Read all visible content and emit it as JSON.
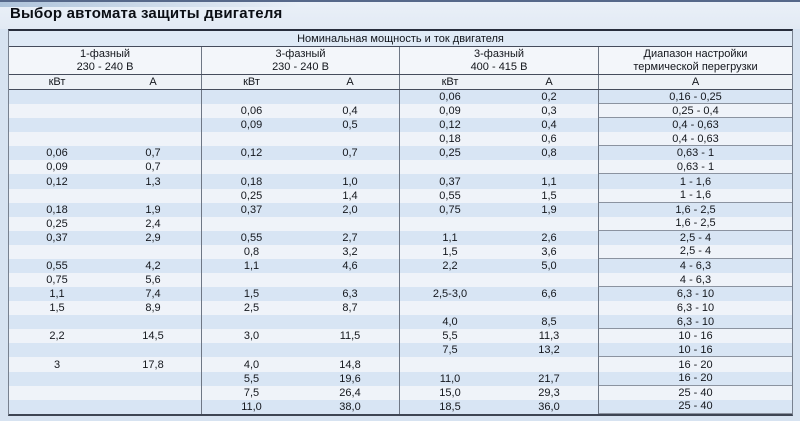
{
  "title": "Выбор автомата защиты двигателя",
  "colors": {
    "band1_bg": "#dfeaf6",
    "band2_bg": "#f3f6fa",
    "band3_bg": "#eef2f7",
    "row_blue": "#d8e5f4",
    "row_white": "#eff3f9",
    "border_dark": "#272d3c",
    "divider_gray": "#6e7785",
    "range_group_border": "#8b93a0"
  },
  "table": {
    "main_header": "Номинальная мощность и ток двигателя",
    "groups": [
      {
        "line1": "1-фазный",
        "line2": "230 - 240 В"
      },
      {
        "line1": "3-фазный",
        "line2": "230 - 240 В"
      },
      {
        "line1": "3-фазный",
        "line2": "400 - 415 В"
      },
      {
        "line1": "Диапазон настройки",
        "line2": "термической перегрузки"
      }
    ],
    "unit_headers": [
      "кВт",
      "А",
      "кВт",
      "А",
      "кВт",
      "А",
      "А"
    ],
    "rows": [
      [
        "",
        "",
        "",
        "",
        "0,06",
        "0,2",
        "0,16 - 0,25"
      ],
      [
        "",
        "",
        "0,06",
        "0,4",
        "0,09",
        "0,3",
        "0,25 - 0,4"
      ],
      [
        "",
        "",
        "0,09",
        "0,5",
        "0,12",
        "0,4",
        "0,4 - 0,63"
      ],
      [
        "",
        "",
        "",
        "",
        "0,18",
        "0,6",
        "0,4 - 0,63"
      ],
      [
        "0,06",
        "0,7",
        "0,12",
        "0,7",
        "0,25",
        "0,8",
        "0,63 - 1"
      ],
      [
        "0,09",
        "0,7",
        "",
        "",
        "",
        "",
        "0,63 - 1"
      ],
      [
        "0,12",
        "1,3",
        "0,18",
        "1,0",
        "0,37",
        "1,1",
        "1 - 1,6"
      ],
      [
        "",
        "",
        "0,25",
        "1,4",
        "0,55",
        "1,5",
        "1 - 1,6"
      ],
      [
        "0,18",
        "1,9",
        "0,37",
        "2,0",
        "0,75",
        "1,9",
        "1,6 - 2,5"
      ],
      [
        "0,25",
        "2,4",
        "",
        "",
        "",
        "",
        "1,6 - 2,5"
      ],
      [
        "0,37",
        "2,9",
        "0,55",
        "2,7",
        "1,1",
        "2,6",
        "2,5 - 4"
      ],
      [
        "",
        "",
        "0,8",
        "3,2",
        "1,5",
        "3,6",
        "2,5 - 4"
      ],
      [
        "0,55",
        "4,2",
        "1,1",
        "4,6",
        "2,2",
        "5,0",
        "4 - 6,3"
      ],
      [
        "0,75",
        "5,6",
        "",
        "",
        "",
        "",
        "4 - 6,3"
      ],
      [
        "1,1",
        "7,4",
        "1,5",
        "6,3",
        "2,5-3,0",
        "6,6",
        "6,3 - 10"
      ],
      [
        "1,5",
        "8,9",
        "2,5",
        "8,7",
        "",
        "",
        "6,3 - 10"
      ],
      [
        "",
        "",
        "",
        "",
        "4,0",
        "8,5",
        "6,3 - 10"
      ],
      [
        "2,2",
        "14,5",
        "3,0",
        "11,5",
        "5,5",
        "11,3",
        "10 - 16"
      ],
      [
        "",
        "",
        "",
        "",
        "7,5",
        "13,2",
        "10 - 16"
      ],
      [
        "3",
        "17,8",
        "4,0",
        "14,8",
        "",
        "",
        "16 - 20"
      ],
      [
        "",
        "",
        "5,5",
        "19,6",
        "11,0",
        "21,7",
        "16 - 20"
      ],
      [
        "",
        "",
        "7,5",
        "26,4",
        "15,0",
        "29,3",
        "25 - 40"
      ],
      [
        "",
        "",
        "11,0",
        "38,0",
        "18,5",
        "36,0",
        "25 - 40"
      ]
    ]
  }
}
